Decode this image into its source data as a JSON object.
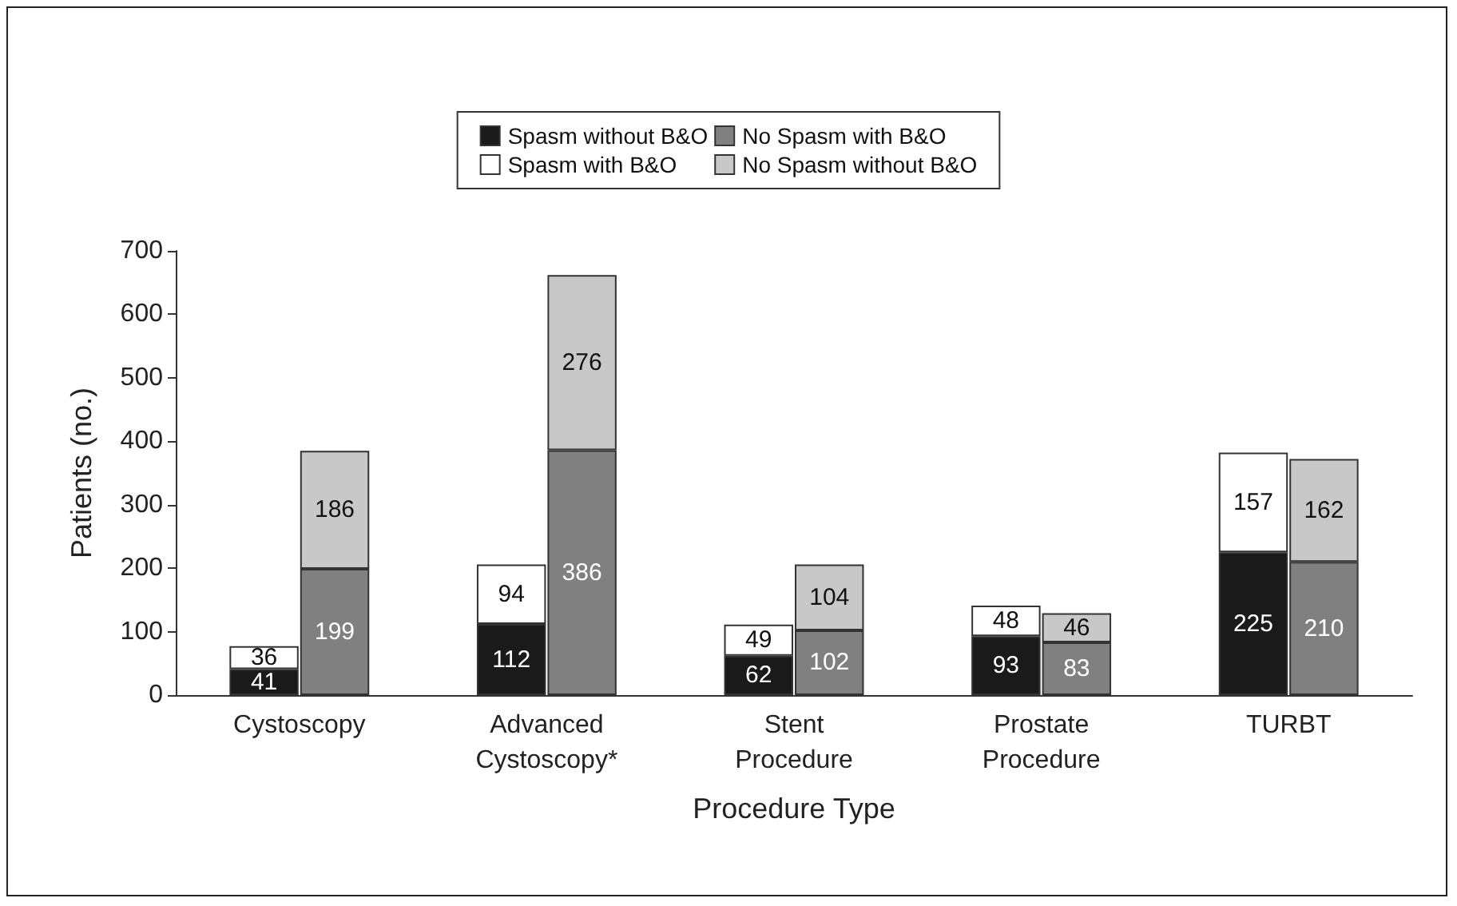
{
  "chart_data": {
    "type": "bar",
    "stacked": true,
    "xlabel": "Procedure Type",
    "ylabel": "Patients (no.)",
    "categories": [
      null,
      null,
      null,
      "Cystoscopy",
      null,
      null,
      null,
      null,
      null,
      null,
      "Advanced\nCystoscopy*",
      null,
      null,
      null,
      null,
      null,
      null,
      "Stent\nProcedure",
      null,
      null,
      null,
      null,
      null,
      null,
      "Prostate\nProcedure",
      null,
      null,
      null,
      null,
      null,
      null,
      "TURBT",
      null,
      null,
      null
    ],
    "series": [
      {
        "name": "Spasm without B&O",
        "color": "#1a1a1a",
        "values": [
          null,
          null,
          41,
          null,
          null,
          null,
          null,
          null,
          null,
          112,
          null,
          null,
          null,
          null,
          null,
          null,
          62,
          null,
          null,
          null,
          null,
          null,
          null,
          93,
          null,
          null,
          null,
          null,
          null,
          null,
          225,
          null,
          null,
          null,
          null
        ]
      },
      {
        "name": "Spasm with B&O",
        "color": "#ffffff",
        "values": [
          null,
          null,
          36,
          null,
          null,
          null,
          null,
          null,
          null,
          94,
          null,
          null,
          null,
          null,
          null,
          null,
          49,
          null,
          null,
          null,
          null,
          null,
          null,
          48,
          null,
          null,
          null,
          null,
          null,
          null,
          157,
          null,
          null,
          null,
          null
        ]
      },
      {
        "name": "No Spasm with B&O",
        "color": "#808080",
        "values": [
          null,
          null,
          null,
          null,
          199,
          null,
          null,
          null,
          null,
          null,
          null,
          386,
          null,
          null,
          null,
          null,
          null,
          null,
          102,
          null,
          null,
          null,
          null,
          null,
          null,
          83,
          null,
          null,
          null,
          null,
          null,
          null,
          210,
          null,
          null
        ]
      },
      {
        "name": "No Spasm without B&O",
        "color": "#c8c8c8",
        "values": [
          null,
          null,
          null,
          null,
          186,
          null,
          null,
          null,
          null,
          null,
          null,
          276,
          null,
          null,
          null,
          null,
          null,
          null,
          104,
          null,
          null,
          null,
          null,
          null,
          null,
          46,
          null,
          null,
          null,
          null,
          null,
          null,
          162,
          null,
          null
        ]
      }
    ],
    "ylim": [
      0,
      700
    ],
    "yticks": [
      0,
      100,
      200,
      300,
      400,
      500,
      600,
      700
    ],
    "data_labels": true,
    "legend": "top",
    "grid": false
  }
}
